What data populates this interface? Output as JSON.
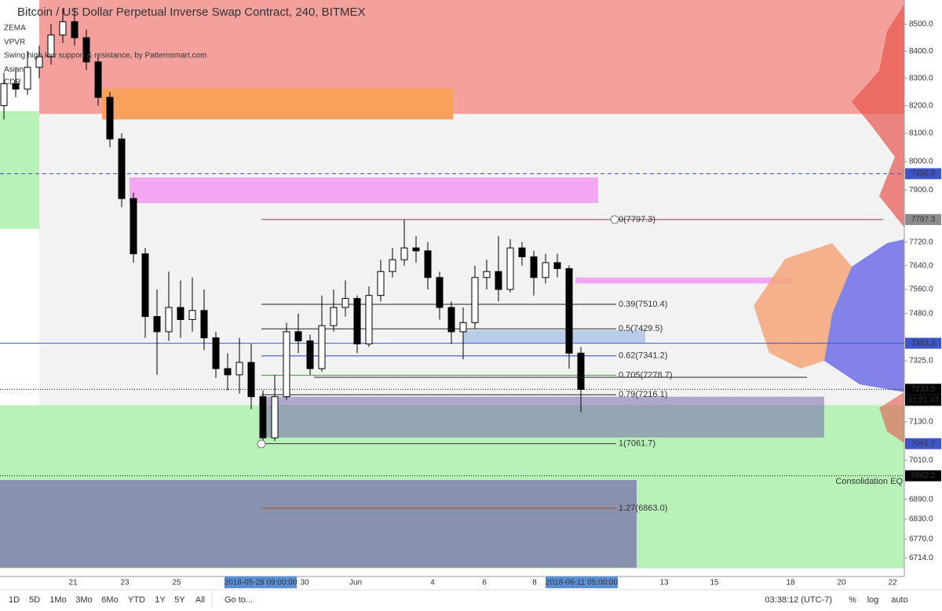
{
  "chart_data": {
    "type": "candlestick",
    "title": "Bitcoin / US Dollar Perpetual Inverse Swap Contract, 240, BITMEX",
    "indicators": [
      "ZEMA",
      "VPVR",
      "Swing high low support & resistance, by Patternsmart.com",
      "Asian",
      "CDR"
    ],
    "log_scale": true,
    "ylim": [
      6659,
      8592
    ],
    "yticks": [
      {
        "value": 8500,
        "label": "8500.0"
      },
      {
        "value": 8400,
        "label": "8400.0"
      },
      {
        "value": 8300,
        "label": "8300.0"
      },
      {
        "value": 8200,
        "label": "8200.0"
      },
      {
        "value": 8100,
        "label": "8100.0"
      },
      {
        "value": 8000,
        "label": "8000.0"
      },
      {
        "value": 7900,
        "label": "7900.0"
      },
      {
        "value": 7720,
        "label": "7720.0"
      },
      {
        "value": 7640,
        "label": "7640.0"
      },
      {
        "value": 7560,
        "label": "7560.0"
      },
      {
        "value": 7480,
        "label": "7480.0"
      },
      {
        "value": 7325,
        "label": "7325.0"
      },
      {
        "value": 7130,
        "label": "7130.0"
      },
      {
        "value": 7010,
        "label": "7010.0"
      },
      {
        "value": 6890,
        "label": "6890.0"
      },
      {
        "value": 6830,
        "label": "6830.0"
      },
      {
        "value": 6770,
        "label": "6770.0"
      },
      {
        "value": 6714,
        "label": "6714.0"
      }
    ],
    "xtick_labels": [
      "21",
      "23",
      "25",
      "30",
      "Jun",
      "4",
      "6",
      "8",
      "13",
      "15",
      "18",
      "20",
      "22"
    ],
    "cursor_labels": [
      "2018-05-28 09:00:00",
      "2018-06-11 05:00:00"
    ],
    "open": [
      8200,
      8280,
      8260,
      8340,
      8380,
      8460,
      8510,
      8450,
      8360,
      8230,
      8080,
      7870,
      7680,
      7470,
      7420,
      7500,
      7460,
      7490,
      7400,
      7300,
      7280,
      7320,
      7210,
      7080,
      7210,
      7420,
      7390,
      7300,
      7440,
      7500,
      7530,
      7380,
      7540,
      7620,
      7660,
      7700,
      7690,
      7600,
      7500,
      7420,
      7450,
      7600,
      7620,
      7560,
      7700,
      7670,
      7600,
      7650,
      7630,
      7350
    ],
    "high": [
      8320,
      8340,
      8400,
      8420,
      8500,
      8560,
      8560,
      8480,
      8380,
      8250,
      8100,
      7890,
      7700,
      7560,
      7620,
      7590,
      7600,
      7560,
      7420,
      7350,
      7400,
      7380,
      7230,
      7280,
      7450,
      7480,
      7410,
      7540,
      7560,
      7590,
      7540,
      7570,
      7660,
      7700,
      7797.3,
      7740,
      7720,
      7620,
      7520,
      7500,
      7640,
      7660,
      7740,
      7730,
      7720,
      7690,
      7680,
      7680,
      7640,
      7370
    ],
    "low": [
      8150,
      8230,
      8240,
      8300,
      8350,
      8430,
      8420,
      8330,
      8200,
      8050,
      7840,
      7650,
      7400,
      7280,
      7390,
      7400,
      7420,
      7360,
      7270,
      7230,
      7220,
      7170,
      7061.7,
      7070,
      7200,
      7350,
      7280,
      7290,
      7420,
      7470,
      7350,
      7370,
      7520,
      7600,
      7640,
      7650,
      7560,
      7460,
      7380,
      7330,
      7430,
      7560,
      7520,
      7550,
      7640,
      7540,
      7580,
      7600,
      7300,
      7160
    ],
    "close": [
      8280,
      8260,
      8340,
      8380,
      8460,
      8510,
      8450,
      8360,
      8230,
      8080,
      7870,
      7680,
      7470,
      7420,
      7500,
      7460,
      7490,
      7400,
      7300,
      7280,
      7320,
      7210,
      7080,
      7210,
      7420,
      7390,
      7300,
      7440,
      7500,
      7530,
      7380,
      7540,
      7620,
      7660,
      7700,
      7690,
      7600,
      7500,
      7420,
      7450,
      7600,
      7620,
      7560,
      7700,
      7670,
      7600,
      7650,
      7630,
      7350,
      7233.5
    ],
    "zones": [
      {
        "top": 8592,
        "bottom": 8170,
        "color": "#f4a09c"
      },
      {
        "top": 8262,
        "bottom": 8150,
        "color": "#f7a15d"
      },
      {
        "top": 8180,
        "bottom": 7765,
        "color": "#b9f2b9"
      },
      {
        "top": 7944,
        "bottom": 7854,
        "color": "#f4a6f2"
      },
      {
        "top": 7183,
        "bottom": 6683,
        "color": "#b9f2b9"
      },
      {
        "top": 6949,
        "bottom": 6685,
        "color": "#8891ad"
      },
      {
        "top": 7210,
        "bottom": 7081,
        "color": "rgba(110,90,170,0.5)"
      },
      {
        "top": 7425,
        "bottom": 7384,
        "color": "#b9cde9"
      },
      {
        "top": 7600,
        "bottom": 7580,
        "color": "#f4a6f2"
      }
    ],
    "fib_levels": [
      {
        "label": "0(7797.3)",
        "price": 7797.3,
        "color": "#8a3c5a"
      },
      {
        "label": "0.39(7510.4)",
        "price": 7510.4,
        "color": "#222222"
      },
      {
        "label": "0.5(7429.5)",
        "price": 7429.5,
        "color": "#222222"
      },
      {
        "label": "0.62(7341.2)",
        "price": 7341.2,
        "color": "#2a3cc8"
      },
      {
        "label": "0.705(7278.7)",
        "price": 7278.7,
        "color": "#3aa03a"
      },
      {
        "label": "0.79(7216.1)",
        "price": 7216.1,
        "color": "#222222"
      },
      {
        "label": "1(7061.7)",
        "price": 7061.7,
        "color": "#333333"
      },
      {
        "label": "1.27(6863.0)",
        "price": 6863.0,
        "color": "#a0521e"
      }
    ],
    "price_tags": [
      {
        "value": 7956.9,
        "color": "#3d55c8",
        "line": "dashed"
      },
      {
        "value": 7797.3,
        "color": "#8c8c8c"
      },
      {
        "value": 7382.3,
        "color": "#3d55c8",
        "line": "solid"
      },
      {
        "value": 7233.5,
        "color": "#000000",
        "line": "dotted"
      },
      {
        "value": 7061.7,
        "color": "#3d55c8"
      },
      {
        "value": 6962.2,
        "color": "#000000",
        "line": "dotted"
      }
    ],
    "countdown": "01:21:47",
    "annotation": "Consolidation EQ"
  },
  "toolbar": {
    "ranges": [
      "1D",
      "5D",
      "1Mo",
      "3Mo",
      "6Mo",
      "YTD",
      "1Y",
      "5Y",
      "All"
    ],
    "goto": "Go to...",
    "clock": "03:38:12 (UTC-7)",
    "percent": "%",
    "log": "log",
    "auto": "auto"
  }
}
